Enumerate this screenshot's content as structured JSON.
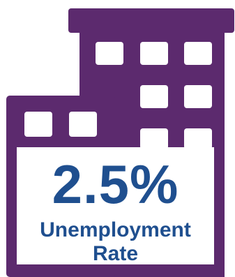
{
  "stat": {
    "value": "2.5%",
    "label_line1": "Unemployment",
    "label_line2": "Rate"
  },
  "colors": {
    "building": "#5c2a6e",
    "window": "#ffffff",
    "panel": "#ffffff",
    "text": "#1f4f8f"
  },
  "icons": {
    "illustration": "office-buildings-icon"
  }
}
